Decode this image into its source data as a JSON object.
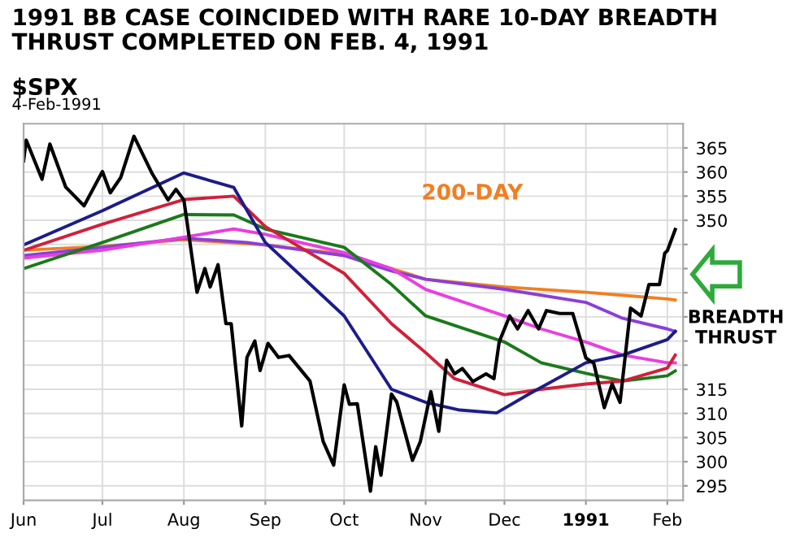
{
  "chart_data": {
    "type": "line",
    "title": "1991 BB CASE COINCIDED WITH RARE 10-DAY BREADTH\nTHRUST COMPLETED ON FEB. 4, 1991",
    "annotations": [
      "$SPX",
      "4-Feb-1991",
      "200-DAY",
      "BREADTH\nTHRUST"
    ],
    "series": [
      {
        "color": "#f07f22",
        "x": [
          "1990-06-01",
          "1990-07-01",
          "1990-08-01",
          "1990-09-01",
          "1990-10-01",
          "1990-10-19",
          "1990-11-01",
          "1990-12-01",
          "1991-01-01",
          "1991-02-01",
          "1991-02-04"
        ],
        "values": [
          343.8,
          344.6,
          346,
          344.9,
          343,
          340,
          337.8,
          336.2,
          335.1,
          333.7,
          333.5
        ]
      },
      {
        "color": "#8a3fd9",
        "x": [
          "1990-06-01",
          "1990-07-01",
          "1990-08-01",
          "1990-08-25",
          "1990-09-01",
          "1990-10-01",
          "1990-10-19",
          "1990-11-01",
          "1990-12-01",
          "1991-01-01",
          "1991-01-15",
          "1991-02-01",
          "1991-02-04"
        ],
        "values": [
          342.7,
          344.4,
          346.3,
          345.4,
          344.9,
          342.7,
          339.5,
          337.8,
          335.7,
          333,
          329.7,
          327.5,
          327
        ]
      },
      {
        "color": "#e83fe0",
        "x": [
          "1990-06-01",
          "1990-07-01",
          "1990-08-01",
          "1990-08-20",
          "1990-09-01",
          "1990-10-01",
          "1990-10-19",
          "1990-11-01",
          "1990-12-01",
          "1990-12-15",
          "1991-01-01",
          "1991-01-15",
          "1991-02-01",
          "1991-02-04"
        ],
        "values": [
          342.2,
          343.8,
          346.5,
          348.2,
          347.1,
          343.3,
          340,
          335.7,
          330.2,
          327.5,
          324.8,
          322.1,
          320.5,
          320.5
        ]
      },
      {
        "color": "#1a7a1a",
        "x": [
          "1990-06-01",
          "1990-07-01",
          "1990-08-01",
          "1990-08-20",
          "1990-09-01",
          "1990-10-01",
          "1990-10-19",
          "1990-11-01",
          "1990-12-01",
          "1990-12-15",
          "1991-01-01",
          "1991-01-15",
          "1991-02-01",
          "1991-02-04"
        ],
        "values": [
          340,
          345.4,
          351.2,
          351.1,
          348.2,
          344.4,
          336.7,
          330.2,
          324.8,
          320.5,
          318.3,
          316.7,
          317.8,
          318.8
        ]
      },
      {
        "color": "#d0203a",
        "x": [
          "1990-06-01",
          "1990-07-01",
          "1990-08-01",
          "1990-08-20",
          "1990-09-01",
          "1990-10-01",
          "1990-10-19",
          "1990-11-01",
          "1990-11-12",
          "1990-12-01",
          "1990-12-15",
          "1991-01-01",
          "1991-01-15",
          "1991-02-01",
          "1991-02-04"
        ],
        "values": [
          343.8,
          349.2,
          354.3,
          355,
          348.7,
          339,
          328.6,
          322.6,
          317.2,
          313.9,
          315,
          316.1,
          316.7,
          319.4,
          322.1
        ]
      },
      {
        "color": "#1c1c8a",
        "x": [
          "1990-06-01",
          "1990-07-01",
          "1990-08-01",
          "1990-08-20",
          "1990-09-01",
          "1990-10-01",
          "1990-10-19",
          "1990-11-01",
          "1990-11-14",
          "1990-11-28",
          "1990-12-10",
          "1991-01-01",
          "1991-01-15",
          "1991-02-01",
          "1991-02-04"
        ],
        "values": [
          344.9,
          352,
          359.8,
          356.8,
          345.4,
          330.2,
          315,
          312.3,
          310.7,
          310.1,
          313.9,
          320.5,
          322.1,
          325.3,
          327
        ]
      },
      {
        "color": "#000000",
        "x": [
          "1990-06-01",
          "1990-06-02",
          "1990-06-08",
          "1990-06-11",
          "1990-06-17",
          "1990-06-24",
          "1990-07-01",
          "1990-07-04",
          "1990-07-08",
          "1990-07-13",
          "1990-07-20",
          "1990-07-26",
          "1990-07-29",
          "1990-08-01",
          "1990-08-06",
          "1990-08-09",
          "1990-08-11",
          "1990-08-14",
          "1990-08-17",
          "1990-08-19",
          "1990-08-23",
          "1990-08-25",
          "1990-08-28",
          "1990-08-30",
          "1990-09-02",
          "1990-09-06",
          "1990-09-10",
          "1990-09-18",
          "1990-09-23",
          "1990-09-27",
          "1990-10-01",
          "1990-10-03",
          "1990-10-06",
          "1990-10-11",
          "1990-10-13",
          "1990-10-15",
          "1990-10-19",
          "1990-10-21",
          "1990-10-27",
          "1990-10-30",
          "1990-11-03",
          "1990-11-06",
          "1990-11-09",
          "1990-11-12",
          "1990-11-15",
          "1990-11-19",
          "1990-11-24",
          "1990-11-27",
          "1990-11-29",
          "1990-12-03",
          "1990-12-06",
          "1990-12-10",
          "1990-12-14",
          "1990-12-17",
          "1990-12-22",
          "1990-12-27",
          "1991-01-01",
          "1991-01-04",
          "1991-01-08",
          "1991-01-11",
          "1991-01-14",
          "1991-01-18",
          "1991-01-22",
          "1991-01-25",
          "1991-01-29",
          "1991-01-31",
          "1991-02-01",
          "1991-02-04"
        ],
        "values": [
          362.3,
          366.6,
          358.5,
          365.8,
          356.9,
          353,
          360.1,
          355.7,
          358.9,
          367.4,
          359.6,
          354.2,
          356.4,
          354.2,
          335.1,
          340,
          336.2,
          340.8,
          328.6,
          328.6,
          307.4,
          321.6,
          325,
          318.9,
          324.5,
          321.6,
          322,
          316.7,
          304.2,
          299.3,
          315.9,
          311.9,
          312,
          293.9,
          303.1,
          297.2,
          314,
          312.4,
          300.3,
          304.2,
          314.5,
          306.3,
          321,
          318.2,
          319.3,
          316.6,
          318.2,
          317.2,
          324.8,
          330.2,
          327.5,
          331.3,
          327.5,
          331.3,
          330.7,
          330.7,
          321.5,
          320.4,
          311.2,
          316.1,
          312.3,
          331.8,
          330.2,
          336.7,
          336.7,
          343.2,
          343.7,
          348.1
        ]
      }
    ],
    "xlim": [
      "1990-06-01",
      "1991-02-07"
    ],
    "xticks": [
      {
        "value": "1990-06-01",
        "label": "Jun"
      },
      {
        "value": "1990-07-01",
        "label": "Jul"
      },
      {
        "value": "1990-08-01",
        "label": "Aug"
      },
      {
        "value": "1990-09-01",
        "label": "Sep"
      },
      {
        "value": "1990-10-01",
        "label": "Oct"
      },
      {
        "value": "1990-11-01",
        "label": "Nov"
      },
      {
        "value": "1990-12-01",
        "label": "Dec"
      },
      {
        "value": "1991-01-01",
        "label": "1991"
      },
      {
        "value": "1991-02-01",
        "label": "Feb"
      }
    ],
    "ylim": [
      292,
      370
    ],
    "yticks": [
      295,
      300,
      305,
      310,
      315,
      {
        "value": 320,
        "label": null
      },
      {
        "value": 325,
        "label": null
      },
      {
        "value": 330,
        "label": null
      },
      {
        "value": 335,
        "label": null
      },
      {
        "value": 340,
        "label": null
      },
      {
        "value": 345,
        "label": null
      },
      350,
      355,
      360,
      365
    ],
    "grid": true,
    "marker": "none",
    "line_style": "solid"
  }
}
